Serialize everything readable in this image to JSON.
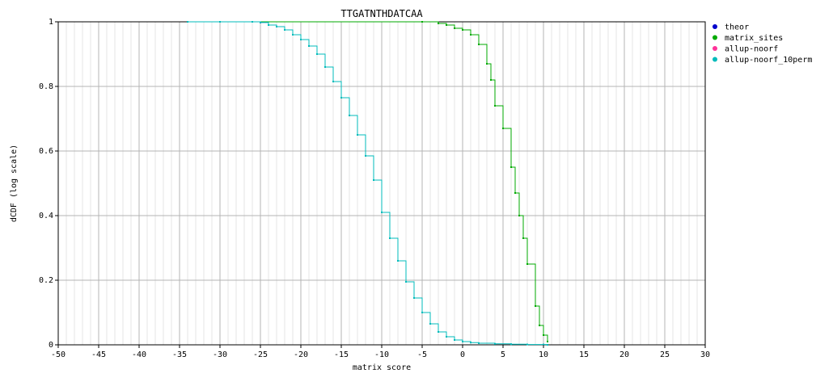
{
  "chart_data": {
    "type": "line",
    "title": "TTGATNTHDATCAA",
    "xlabel": "matrix score",
    "ylabel": "dCDF (log scale)",
    "xlim": [
      -50,
      30
    ],
    "ylim": [
      0,
      1
    ],
    "xticks": [
      -50,
      -45,
      -40,
      -35,
      -30,
      -25,
      -20,
      -15,
      -10,
      -5,
      0,
      5,
      10,
      15,
      20,
      25,
      30
    ],
    "yticks": [
      0,
      0.2,
      0.4,
      0.6,
      0.8,
      1
    ],
    "grid": true,
    "legend_position": "top-right",
    "series": [
      {
        "name": "theor",
        "color": "#0000cc",
        "x": [
          -34,
          -30,
          -26,
          -25,
          -24,
          -23,
          -22,
          -21,
          -20,
          -19,
          -18,
          -17,
          -16,
          -15,
          -14,
          -13,
          -12,
          -11,
          -10,
          -9,
          -8,
          -7,
          -6
        ],
        "y": [
          1.0,
          1.0,
          1.0,
          0.998,
          0.99,
          0.985,
          0.975,
          0.96,
          0.945,
          0.925,
          0.9,
          0.86,
          0.815,
          0.765,
          0.71,
          0.65,
          0.585,
          0.51,
          0.41,
          0.33,
          0.26,
          0.195,
          0.145
        ]
      },
      {
        "name": "matrix_sites",
        "color": "#00aa00",
        "x": [
          -34,
          -5,
          -3,
          -2,
          -1,
          0,
          1,
          2,
          3,
          3.5,
          4,
          5,
          6,
          6.5,
          7,
          7.5,
          8,
          9,
          9.5,
          10,
          10.5
        ],
        "y": [
          1.0,
          1.0,
          0.995,
          0.99,
          0.98,
          0.975,
          0.96,
          0.93,
          0.87,
          0.82,
          0.74,
          0.67,
          0.55,
          0.47,
          0.4,
          0.33,
          0.25,
          0.12,
          0.06,
          0.03,
          0.01
        ]
      },
      {
        "name": "allup-noorf",
        "color": "#ff3399",
        "x": [],
        "y": []
      },
      {
        "name": "allup-noorf_10perm",
        "color": "#00bbbb",
        "x": [
          -34,
          -30,
          -26,
          -25,
          -24,
          -23,
          -22,
          -21,
          -20,
          -19,
          -18,
          -17,
          -16,
          -15,
          -14,
          -13,
          -12,
          -11,
          -10,
          -9,
          -8,
          -7,
          -6,
          -5,
          -4,
          -3,
          -2,
          -1,
          0,
          1,
          2,
          4,
          6,
          8,
          10,
          10.5
        ],
        "y": [
          1.0,
          1.0,
          1.0,
          0.998,
          0.99,
          0.985,
          0.975,
          0.96,
          0.945,
          0.925,
          0.9,
          0.86,
          0.815,
          0.765,
          0.71,
          0.65,
          0.585,
          0.51,
          0.41,
          0.33,
          0.26,
          0.195,
          0.145,
          0.1,
          0.065,
          0.04,
          0.025,
          0.015,
          0.01,
          0.007,
          0.005,
          0.003,
          0.002,
          0.001,
          0.001,
          0.0
        ]
      }
    ]
  }
}
